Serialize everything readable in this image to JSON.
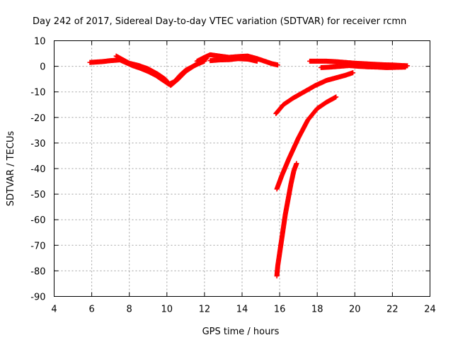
{
  "chart_data": {
    "type": "scatter",
    "title": "Day 242 of 2017, Sidereal Day-to-day VTEC variation (SDTVAR) for receiver rcmn",
    "xlabel": "GPS time / hours",
    "ylabel": "SDTVAR / TECUs",
    "xlim": [
      4,
      24
    ],
    "ylim": [
      -90,
      10
    ],
    "xticks": [
      4,
      6,
      8,
      10,
      12,
      14,
      16,
      18,
      20,
      22,
      24
    ],
    "yticks": [
      10,
      0,
      -10,
      -20,
      -30,
      -40,
      -50,
      -60,
      -70,
      -80,
      -90
    ],
    "grid": true,
    "marker": "plus",
    "color": "#ff0000",
    "series": [
      {
        "x": [
          5.9,
          6.5,
          7.0,
          7.5,
          7.8,
          8.2,
          8.6,
          9.0,
          9.4,
          9.8,
          10.1,
          10.4,
          10.7,
          11.0,
          11.4,
          11.8,
          12.1
        ],
        "y": [
          1.5,
          1.8,
          2.2,
          2.5,
          1.5,
          0.2,
          -0.8,
          -2.0,
          -3.5,
          -5.5,
          -7.0,
          -6.0,
          -3.5,
          -1.5,
          0.0,
          1.5,
          3.0
        ]
      },
      {
        "x": [
          7.3,
          7.6,
          8.0,
          8.5,
          9.0,
          9.5,
          9.9,
          10.2,
          10.6,
          11.0,
          11.5,
          12.0
        ],
        "y": [
          4.0,
          2.8,
          1.2,
          0.3,
          -1.0,
          -3.0,
          -5.0,
          -7.5,
          -5.0,
          -2.0,
          0.5,
          2.0
        ]
      },
      {
        "x": [
          11.6,
          12.0,
          12.3,
          12.8,
          13.3,
          13.8,
          14.3,
          14.8,
          15.2,
          15.6,
          15.9
        ],
        "y": [
          2.0,
          3.5,
          4.5,
          4.0,
          3.5,
          3.8,
          4.0,
          3.0,
          2.0,
          1.0,
          0.5
        ]
      },
      {
        "x": [
          12.3,
          12.8,
          13.3,
          13.8,
          14.3,
          14.8
        ],
        "y": [
          2.2,
          2.5,
          2.6,
          3.0,
          2.8,
          2.0
        ]
      },
      {
        "x": [
          15.8,
          16.2,
          16.7,
          17.3,
          17.9,
          18.5,
          19.0,
          19.5,
          19.9
        ],
        "y": [
          -18.5,
          -15.0,
          -12.5,
          -10.0,
          -7.5,
          -5.5,
          -4.5,
          -3.5,
          -2.5
        ]
      },
      {
        "x": [
          15.85,
          16.1,
          16.5,
          17.0,
          17.5,
          18.0,
          18.5,
          19.0
        ],
        "y": [
          -48.0,
          -43.0,
          -36.0,
          -28.0,
          -21.0,
          -16.5,
          -14.0,
          -12.0
        ]
      },
      {
        "x": [
          15.85,
          15.9,
          16.0,
          16.1,
          16.2,
          16.3,
          16.45,
          16.6,
          16.75,
          16.9
        ],
        "y": [
          -82.0,
          -78.0,
          -73.0,
          -68.0,
          -63.0,
          -58.0,
          -52.0,
          -46.0,
          -41.0,
          -38.0
        ]
      },
      {
        "x": [
          17.6,
          18.0,
          18.5,
          19.0,
          19.5,
          20.0,
          20.5,
          21.0,
          21.5,
          22.0,
          22.5,
          22.8
        ],
        "y": [
          2.0,
          2.0,
          2.0,
          1.8,
          1.5,
          1.2,
          1.0,
          0.8,
          0.6,
          0.5,
          0.3,
          0.2
        ]
      },
      {
        "x": [
          18.2,
          18.7,
          19.2,
          19.7,
          20.2,
          20.7,
          21.2,
          21.7,
          22.2,
          22.7
        ],
        "y": [
          -0.5,
          -0.3,
          0.0,
          0.3,
          0.0,
          -0.2,
          -0.3,
          -0.5,
          -0.4,
          -0.3
        ]
      }
    ]
  }
}
